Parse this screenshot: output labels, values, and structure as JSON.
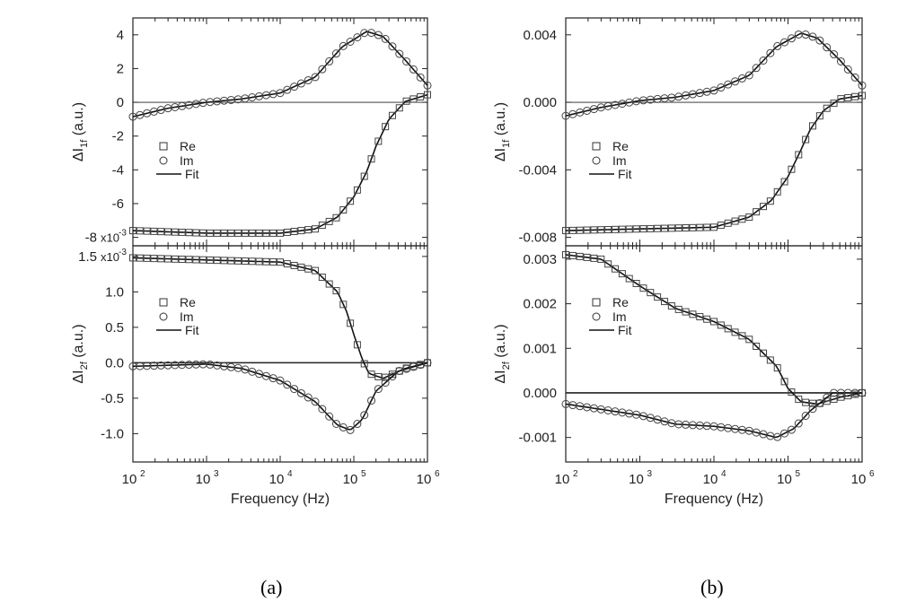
{
  "captions": [
    "(a)",
    "(b)"
  ],
  "chart_data": [
    {
      "panel": "a-top",
      "type": "scatter",
      "ylabel": "ΔI1f (a.u.)",
      "x_scale": "log",
      "xlim": [
        100,
        1000000
      ],
      "ylim": [
        -8.5,
        5
      ],
      "y_ticks": [
        4,
        2,
        0,
        -2,
        -4,
        -6,
        -8
      ],
      "y_tick_labels": [
        "4",
        "2",
        "0",
        "-2",
        "-4",
        "-6",
        "-8"
      ],
      "y_multiplier": "x10-3",
      "legend": [
        "Re",
        "Im",
        "Fit"
      ],
      "legend_position": "middle-left",
      "zero_line": true,
      "series": [
        {
          "name": "Re",
          "marker": "square",
          "x": [
            100,
            1000,
            10000,
            30000,
            60000,
            100000,
            150000,
            200000,
            300000,
            500000,
            1000000
          ],
          "y": [
            -7.6,
            -7.75,
            -7.75,
            -7.5,
            -6.8,
            -5.6,
            -4.1,
            -2.6,
            -1.0,
            0.05,
            0.45
          ]
        },
        {
          "name": "Im",
          "marker": "circle",
          "x": [
            100,
            300,
            1000,
            3000,
            10000,
            30000,
            70000,
            150000,
            250000,
            500000,
            1000000
          ],
          "y": [
            -0.85,
            -0.35,
            0.0,
            0.2,
            0.55,
            1.5,
            3.3,
            4.2,
            3.9,
            2.5,
            1.0
          ]
        }
      ]
    },
    {
      "panel": "a-bottom",
      "type": "scatter",
      "ylabel": "ΔI2f (a.u.)",
      "xlabel": "Frequency (Hz)",
      "x_scale": "log",
      "xlim": [
        100,
        1000000
      ],
      "ylim": [
        -1.4,
        1.65
      ],
      "y_ticks": [
        1.5,
        1.0,
        0.5,
        0.0,
        -0.5,
        -1.0
      ],
      "y_tick_labels": [
        "1.5",
        "1.0",
        "0.5",
        "0.0",
        "-0.5",
        "-1.0"
      ],
      "y_multiplier": "x10-3",
      "x_ticks": [
        100,
        1000,
        10000,
        100000,
        1000000
      ],
      "x_tick_labels": [
        [
          "10",
          "2"
        ],
        [
          "10",
          "3"
        ],
        [
          "10",
          "4"
        ],
        [
          "10",
          "5"
        ],
        [
          "10",
          "6"
        ]
      ],
      "legend": [
        "Re",
        "Im",
        "Fit"
      ],
      "legend_position": "middle-left",
      "zero_line": true,
      "series": [
        {
          "name": "Re",
          "marker": "square",
          "x": [
            100,
            1000,
            10000,
            30000,
            60000,
            80000,
            100000,
            130000,
            160000,
            250000,
            500000,
            1000000
          ],
          "y": [
            1.48,
            1.45,
            1.42,
            1.3,
            1.0,
            0.72,
            0.4,
            0.05,
            -0.15,
            -0.22,
            -0.08,
            0.0
          ]
        },
        {
          "name": "Im",
          "marker": "circle",
          "x": [
            100,
            1000,
            3000,
            10000,
            30000,
            60000,
            90000,
            130000,
            200000,
            400000,
            1000000
          ],
          "y": [
            -0.05,
            -0.02,
            -0.08,
            -0.25,
            -0.55,
            -0.88,
            -0.95,
            -0.8,
            -0.4,
            -0.12,
            0.0
          ]
        }
      ]
    },
    {
      "panel": "b-top",
      "type": "scatter",
      "ylabel": "ΔI1f (a.u.)",
      "x_scale": "log",
      "xlim": [
        100,
        1000000
      ],
      "ylim": [
        -0.0085,
        0.005
      ],
      "y_ticks": [
        0.004,
        0.0,
        -0.004,
        -0.008
      ],
      "y_tick_labels": [
        "0.004",
        "0.000",
        "-0.004",
        "-0.008"
      ],
      "legend": [
        "Re",
        "Im",
        "Fit"
      ],
      "legend_position": "middle-left",
      "zero_line": true,
      "series": [
        {
          "name": "Re",
          "marker": "square",
          "x": [
            100,
            1000,
            10000,
            30000,
            60000,
            100000,
            150000,
            200000,
            300000,
            500000,
            1000000
          ],
          "y": [
            -0.0076,
            -0.0075,
            -0.0074,
            -0.0068,
            -0.0058,
            -0.0044,
            -0.0028,
            -0.0016,
            -0.0005,
            0.0002,
            0.0004
          ]
        },
        {
          "name": "Im",
          "marker": "circle",
          "x": [
            100,
            300,
            1000,
            3000,
            10000,
            30000,
            70000,
            150000,
            250000,
            500000,
            1000000
          ],
          "y": [
            -0.0008,
            -0.0003,
            0.0001,
            0.0003,
            0.0007,
            0.0016,
            0.0033,
            0.0041,
            0.0038,
            0.0025,
            0.001
          ]
        }
      ]
    },
    {
      "panel": "b-bottom",
      "type": "scatter",
      "ylabel": "ΔI2f (a.u.)",
      "xlabel": "Frequency (Hz)",
      "x_scale": "log",
      "xlim": [
        100,
        1000000
      ],
      "ylim": [
        -0.00155,
        0.0033
      ],
      "y_ticks": [
        0.003,
        0.002,
        0.001,
        0.0,
        -0.001
      ],
      "y_tick_labels": [
        "0.003",
        "0.002",
        "0.001",
        "0.000",
        "-0.001"
      ],
      "x_ticks": [
        100,
        1000,
        10000,
        100000,
        1000000
      ],
      "x_tick_labels": [
        [
          "10",
          "2"
        ],
        [
          "10",
          "3"
        ],
        [
          "10",
          "4"
        ],
        [
          "10",
          "5"
        ],
        [
          "10",
          "6"
        ]
      ],
      "legend": [
        "Re",
        "Im",
        "Fit"
      ],
      "legend_position": "middle-left",
      "zero_line": true,
      "series": [
        {
          "name": "Re",
          "marker": "square",
          "x": [
            100,
            300,
            1000,
            3000,
            10000,
            30000,
            70000,
            100000,
            150000,
            250000,
            500000,
            1000000
          ],
          "y": [
            0.0031,
            0.003,
            0.0024,
            0.0019,
            0.0016,
            0.0012,
            0.0006,
            0.0001,
            -0.0002,
            -0.00025,
            -0.0001,
            0.0
          ]
        },
        {
          "name": "Im",
          "marker": "circle",
          "x": [
            100,
            1000,
            3000,
            10000,
            30000,
            70000,
            120000,
            200000,
            400000,
            1000000
          ],
          "y": [
            -0.00025,
            -0.0005,
            -0.0007,
            -0.00075,
            -0.00085,
            -0.001,
            -0.0008,
            -0.0004,
            0.0,
            0.0
          ]
        }
      ]
    }
  ]
}
